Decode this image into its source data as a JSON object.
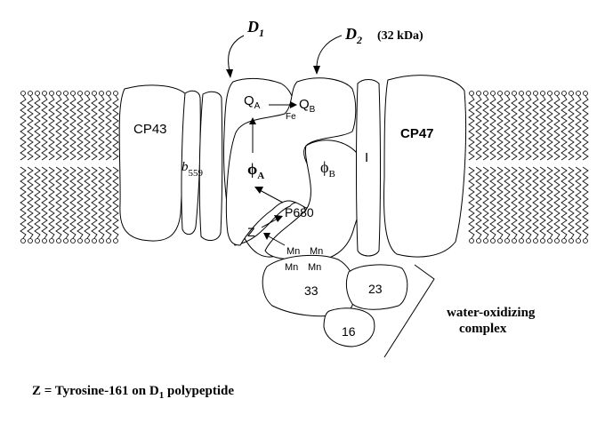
{
  "labels": {
    "d1": "D",
    "d1_sub": "1",
    "d2": "D",
    "d2_sub": "2",
    "d2_mass": "(32 kDa)",
    "cp43": "CP43",
    "cp47": "CP47",
    "b559": "b",
    "b559_sub": "559",
    "qa": "Q",
    "qa_sub": "A",
    "qb": "Q",
    "qb_sub": "B",
    "fe": "Fe",
    "phi_a": "ϕ",
    "phi_a_sub": "A",
    "phi_b": "ϕ",
    "phi_b_sub": "B",
    "i": "I",
    "p680": "P680",
    "z": "Z",
    "mn1": "Mn",
    "mn2": "Mn",
    "mn3": "Mn",
    "mn4": "Mn",
    "p33": "33",
    "p23": "23",
    "p16": "16",
    "woc1": "water-oxidizing",
    "woc2": "complex",
    "caption_pre": "Z = Tyrosine-161 on D",
    "caption_sub": "1",
    "caption_post": " polypeptide"
  }
}
